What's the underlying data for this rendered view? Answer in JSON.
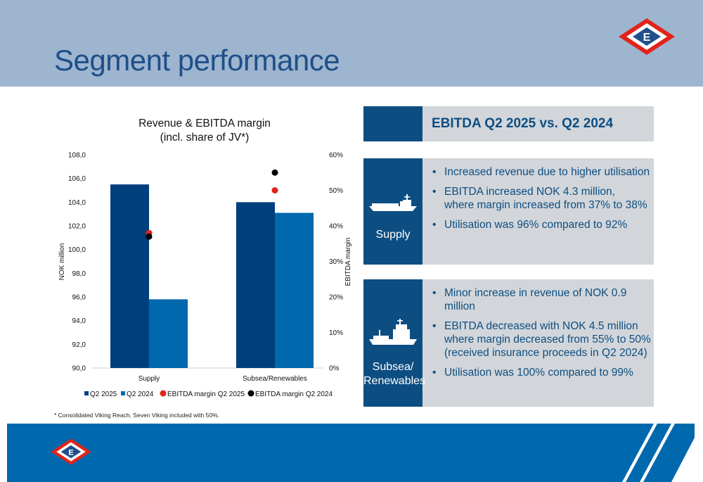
{
  "page": {
    "title": "Segment performance",
    "footnote": "* Consolidated Viking Reach, Seven Viking included with 50%."
  },
  "colors": {
    "header_bg": "#9db5cf",
    "title": "#1f4f8a",
    "navy": "#0d4e82",
    "panel_grey": "#d2d6da",
    "q2_2025": "#003f7d",
    "q2_2024": "#0068ad",
    "margin_2025": "#e2231a",
    "margin_2024": "#000000"
  },
  "logo": {
    "letter": "E"
  },
  "chart_data": {
    "type": "bar",
    "title": "Revenue & EBITDA margin",
    "subtitle": "(incl. share of JV*)",
    "categories": [
      "Supply",
      "Subsea/Renewables"
    ],
    "ylabel": "NOK million",
    "y2label": "EBITDA margin",
    "ylim": [
      90,
      108
    ],
    "y_ticks": [
      "90,0",
      "92,0",
      "94,0",
      "96,0",
      "98,0",
      "100,0",
      "102,0",
      "104,0",
      "106,0",
      "108,0"
    ],
    "y2lim": [
      0,
      60
    ],
    "y2_ticks": [
      "0%",
      "10%",
      "20%",
      "30%",
      "40%",
      "50%",
      "60%"
    ],
    "series": [
      {
        "name": "Q2 2025",
        "kind": "bar",
        "values": [
          105.5,
          104.0
        ]
      },
      {
        "name": "Q2 2024",
        "kind": "bar",
        "values": [
          95.8,
          103.1
        ]
      },
      {
        "name": "EBITDA margin Q2 2025",
        "kind": "point",
        "axis": "y2",
        "values": [
          38,
          50
        ]
      },
      {
        "name": "EBITDA margin Q2 2024",
        "kind": "point",
        "axis": "y2",
        "values": [
          37,
          55
        ]
      }
    ],
    "legend": "bottom",
    "grid": false
  },
  "panel": {
    "header": "EBITDA Q2 2025 vs. Q2 2024",
    "segments": [
      {
        "label": "Supply",
        "icon": "supply-vessel-icon",
        "bullets": [
          [
            "Increased revenue due to higher utilisation"
          ],
          [
            "EBITDA increased NOK 4.3 million,",
            "where margin increased from 37% to 38%"
          ],
          [
            "Utilisation was 96% compared to 92%"
          ]
        ]
      },
      {
        "label_lines": [
          "Subsea/",
          "Renewables"
        ],
        "icon": "subsea-vessel-icon",
        "bullets": [
          [
            "Minor increase in revenue of NOK 0.9 million"
          ],
          [
            "EBITDA decreased with NOK 4.5 million",
            "where margin decreased from 55% to 50%",
            "(received insurance proceeds in Q2 2024)"
          ],
          [
            "Utilisation was 100% compared to 99%"
          ]
        ]
      }
    ]
  }
}
